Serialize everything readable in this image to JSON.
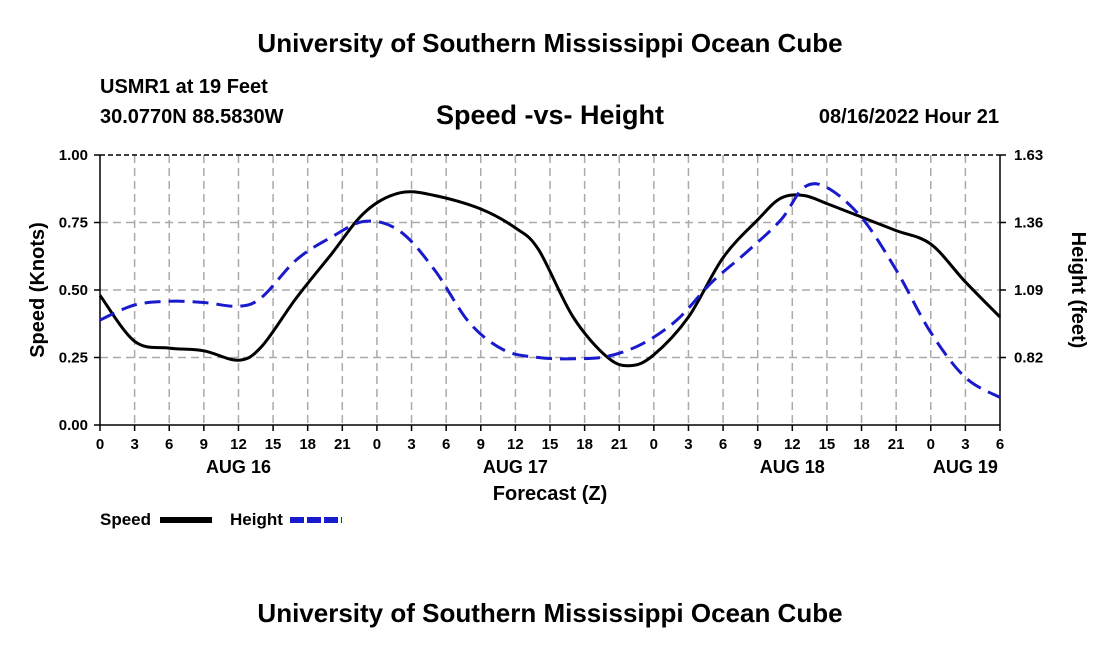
{
  "header": {
    "title": "University of Southern Mississippi Ocean Cube",
    "station": "USMR1 at 19 Feet",
    "coordinates": "30.0770N  88.5830W",
    "subtitle": "Speed -vs- Height",
    "datetime": "08/16/2022 Hour 21"
  },
  "footer": {
    "title": "University of Southern Mississippi Ocean Cube"
  },
  "chart_data": {
    "type": "line",
    "title": "Speed -vs- Height",
    "xlabel": "Forecast (Z)",
    "ylabel": "Speed (Knots)",
    "y2label": "Height (feet)",
    "x_unit": "hours since AUG 16 00Z",
    "xlim": [
      0,
      78
    ],
    "ylim": [
      0,
      1.0
    ],
    "y2lim": [
      0.55,
      1.63
    ],
    "yticks": [
      "0.00",
      "0.25",
      "0.50",
      "0.75",
      "1.00"
    ],
    "y2ticks": [
      "0.82",
      "1.09",
      "1.36",
      "1.63"
    ],
    "y2tick_values": [
      0.82,
      1.09,
      1.36,
      1.63
    ],
    "xtick_labels": [
      "0",
      "3",
      "6",
      "9",
      "12",
      "15",
      "18",
      "21",
      "0",
      "3",
      "6",
      "9",
      "12",
      "15",
      "18",
      "21",
      "0",
      "3",
      "6",
      "9",
      "12",
      "15",
      "18",
      "21",
      "0",
      "3",
      "6"
    ],
    "date_labels": [
      {
        "label": "AUG 16",
        "hour": 12
      },
      {
        "label": "AUG 17",
        "hour": 36
      },
      {
        "label": "AUG 18",
        "hour": 60
      },
      {
        "label": "AUG 19",
        "hour": 75
      }
    ],
    "grid": true,
    "series": [
      {
        "name": "Speed",
        "axis": "left",
        "color": "#000000",
        "dash": "solid",
        "x": [
          0,
          3,
          6,
          9,
          12,
          14,
          17,
          20,
          23,
          26,
          29,
          33,
          36,
          38,
          41,
          44,
          46,
          48,
          51,
          54,
          57,
          59,
          61,
          63,
          66,
          69,
          72,
          75,
          78
        ],
        "y": [
          0.48,
          0.31,
          0.285,
          0.275,
          0.24,
          0.29,
          0.47,
          0.63,
          0.79,
          0.86,
          0.85,
          0.8,
          0.73,
          0.65,
          0.4,
          0.25,
          0.22,
          0.26,
          0.4,
          0.62,
          0.76,
          0.84,
          0.85,
          0.82,
          0.77,
          0.72,
          0.67,
          0.53,
          0.4
        ]
      },
      {
        "name": "Height",
        "axis": "right",
        "color": "#1a1acd",
        "dash": "dashed",
        "x": [
          0,
          3,
          6,
          9,
          12,
          14,
          17,
          20,
          23,
          26,
          29,
          32,
          35,
          38,
          41,
          44,
          47,
          50,
          53,
          56,
          59,
          61,
          63,
          66,
          69,
          72,
          75,
          78
        ],
        "y": [
          0.97,
          1.03,
          1.045,
          1.04,
          1.025,
          1.06,
          1.21,
          1.3,
          1.365,
          1.325,
          1.17,
          0.96,
          0.85,
          0.82,
          0.815,
          0.825,
          0.875,
          0.97,
          1.12,
          1.24,
          1.37,
          1.5,
          1.5,
          1.38,
          1.17,
          0.92,
          0.74,
          0.66
        ]
      }
    ],
    "legend": {
      "placement": "bottom-left",
      "entries": [
        "Speed",
        "Height"
      ]
    }
  }
}
